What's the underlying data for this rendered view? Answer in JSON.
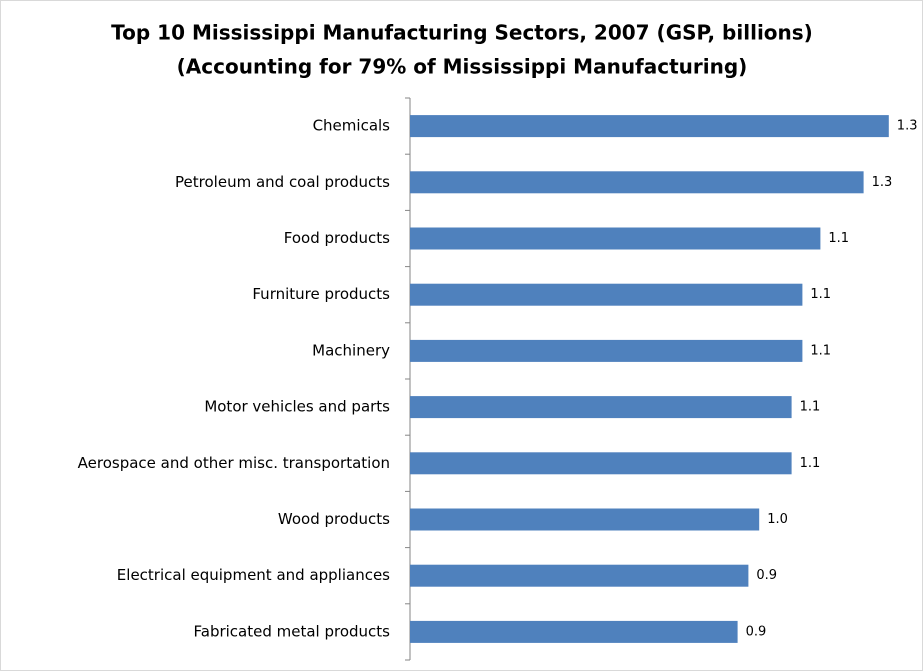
{
  "chart_data": {
    "type": "hbar",
    "title": "Top 10 Mississippi Manufacturing Sectors, 2007 (GSP, billions)",
    "subtitle": "(Accounting for 79% of Mississippi Manufacturing)",
    "categories": [
      "Chemicals",
      "Petroleum and coal products",
      "Food products",
      "Furniture products",
      "Machinery",
      "Motor vehicles and parts",
      "Aerospace and other misc. transportation",
      "Wood products",
      "Electrical equipment and appliances",
      "Fabricated metal products"
    ],
    "values": [
      1.33,
      1.26,
      1.14,
      1.09,
      1.09,
      1.06,
      1.06,
      0.97,
      0.94,
      0.91
    ],
    "value_labels": [
      "1.3",
      "1.3",
      "1.1",
      "1.1",
      "1.1",
      "1.1",
      "1.1",
      "1.0",
      "0.9",
      "0.9"
    ],
    "color": "#4f81bd",
    "xlim": [
      0,
      1.4
    ]
  }
}
